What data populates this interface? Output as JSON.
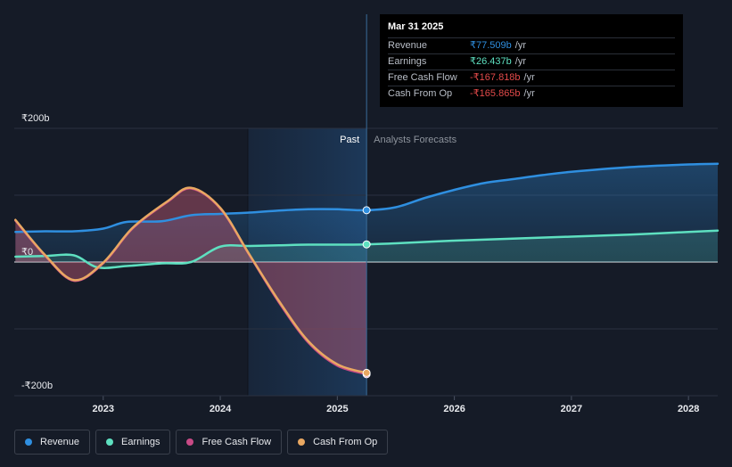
{
  "chart_data": {
    "type": "line",
    "y_tick_labels": [
      "₹200b",
      "₹0",
      "-₹200b"
    ],
    "ylim": [
      -200,
      200
    ],
    "x_ticks": [
      2023,
      2024,
      2025,
      2026,
      2027,
      2028
    ],
    "xlim": [
      2022.24,
      2028.25
    ],
    "past_label": "Past",
    "forecast_label": "Analysts Forecasts",
    "divider_x": 2025.25,
    "shaded_past_start": 2024.24,
    "series": [
      {
        "name": "Revenue",
        "color": "#2f8fe0",
        "points": [
          [
            2022.25,
            45
          ],
          [
            2022.5,
            46
          ],
          [
            2022.75,
            46
          ],
          [
            2023.0,
            50
          ],
          [
            2023.2,
            60
          ],
          [
            2023.5,
            61
          ],
          [
            2023.75,
            70
          ],
          [
            2024.0,
            72
          ],
          [
            2024.25,
            74
          ],
          [
            2024.5,
            77
          ],
          [
            2024.75,
            79
          ],
          [
            2025.0,
            79
          ],
          [
            2025.25,
            77.5
          ],
          [
            2025.5,
            82
          ],
          [
            2025.75,
            96
          ],
          [
            2026.0,
            108
          ],
          [
            2026.25,
            118
          ],
          [
            2026.5,
            124
          ],
          [
            2026.75,
            130
          ],
          [
            2027.0,
            135
          ],
          [
            2027.5,
            142
          ],
          [
            2028.0,
            146
          ],
          [
            2028.25,
            147
          ]
        ]
      },
      {
        "name": "Earnings",
        "color": "#5ee0c0",
        "points": [
          [
            2022.25,
            8
          ],
          [
            2022.5,
            9
          ],
          [
            2022.75,
            10
          ],
          [
            2022.95,
            -8
          ],
          [
            2023.2,
            -6
          ],
          [
            2023.5,
            -2
          ],
          [
            2023.75,
            0
          ],
          [
            2024.0,
            23
          ],
          [
            2024.25,
            24
          ],
          [
            2024.5,
            25
          ],
          [
            2024.75,
            26
          ],
          [
            2025.0,
            26
          ],
          [
            2025.25,
            26.4
          ],
          [
            2025.5,
            28
          ],
          [
            2026.0,
            32
          ],
          [
            2026.5,
            35
          ],
          [
            2027.0,
            38
          ],
          [
            2027.5,
            41
          ],
          [
            2028.0,
            45
          ],
          [
            2028.25,
            47
          ]
        ]
      },
      {
        "name": "Free Cash Flow",
        "color": "#c84a86",
        "points": [
          [
            2022.25,
            62
          ],
          [
            2022.5,
            10
          ],
          [
            2022.75,
            -28
          ],
          [
            2023.0,
            -2
          ],
          [
            2023.25,
            50
          ],
          [
            2023.55,
            90
          ],
          [
            2023.75,
            110
          ],
          [
            2024.0,
            80
          ],
          [
            2024.25,
            10
          ],
          [
            2024.5,
            -60
          ],
          [
            2024.75,
            -120
          ],
          [
            2025.0,
            -155
          ],
          [
            2025.25,
            -167.8
          ]
        ]
      },
      {
        "name": "Cash From Op",
        "color": "#e9a862",
        "points": [
          [
            2022.25,
            63
          ],
          [
            2022.5,
            11
          ],
          [
            2022.75,
            -27
          ],
          [
            2023.0,
            -1
          ],
          [
            2023.25,
            51
          ],
          [
            2023.55,
            91
          ],
          [
            2023.75,
            111
          ],
          [
            2024.0,
            81
          ],
          [
            2024.25,
            11
          ],
          [
            2024.5,
            -58
          ],
          [
            2024.75,
            -118
          ],
          [
            2025.0,
            -153
          ],
          [
            2025.25,
            -165.9
          ]
        ]
      }
    ]
  },
  "tooltip": {
    "date": "Mar 31 2025",
    "rows": [
      {
        "name": "Revenue",
        "value": "₹77.509b",
        "unit": "/yr",
        "color": "#2f8fe0"
      },
      {
        "name": "Earnings",
        "value": "₹26.437b",
        "unit": "/yr",
        "color": "#5ee0c0"
      },
      {
        "name": "Free Cash Flow",
        "value": "-₹167.818b",
        "unit": "/yr",
        "color": "#e24a4a"
      },
      {
        "name": "Cash From Op",
        "value": "-₹165.865b",
        "unit": "/yr",
        "color": "#e24a4a"
      }
    ]
  },
  "legend": [
    {
      "label": "Revenue",
      "color": "#2f8fe0"
    },
    {
      "label": "Earnings",
      "color": "#5ee0c0"
    },
    {
      "label": "Free Cash Flow",
      "color": "#c84a86"
    },
    {
      "label": "Cash From Op",
      "color": "#e9a862"
    }
  ]
}
